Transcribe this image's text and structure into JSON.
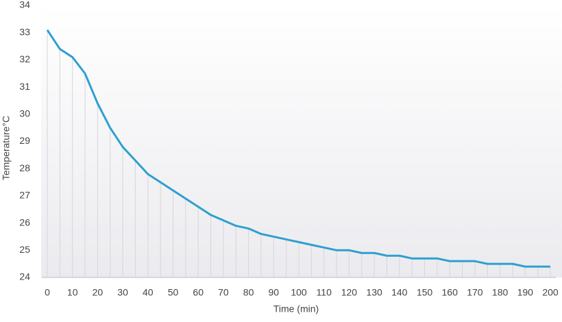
{
  "chart_data": {
    "type": "line",
    "xlabel": "Time (min)",
    "ylabel": "Temperature°C",
    "x": [
      0,
      5,
      10,
      15,
      20,
      25,
      30,
      35,
      40,
      45,
      50,
      55,
      60,
      65,
      70,
      75,
      80,
      85,
      90,
      95,
      100,
      105,
      110,
      115,
      120,
      125,
      130,
      135,
      140,
      145,
      150,
      155,
      160,
      165,
      170,
      175,
      180,
      185,
      190,
      195,
      200
    ],
    "values": [
      33.1,
      32.4,
      32.1,
      31.5,
      30.4,
      29.5,
      28.8,
      28.3,
      27.8,
      27.5,
      27.2,
      26.9,
      26.6,
      26.3,
      26.1,
      25.9,
      25.8,
      25.6,
      25.5,
      25.4,
      25.3,
      25.2,
      25.1,
      25.0,
      25.0,
      24.9,
      24.9,
      24.8,
      24.8,
      24.7,
      24.7,
      24.7,
      24.6,
      24.6,
      24.6,
      24.5,
      24.5,
      24.5,
      24.4,
      24.4,
      24.4
    ],
    "color": "#2e9fd0",
    "xlim": [
      0,
      200
    ],
    "xticks": [
      0,
      10,
      20,
      30,
      40,
      50,
      60,
      70,
      80,
      90,
      100,
      110,
      120,
      130,
      140,
      150,
      160,
      170,
      180,
      190,
      200
    ],
    "ylim": [
      24,
      34
    ],
    "yticks": [
      24,
      25,
      26,
      27,
      28,
      29,
      30,
      31,
      32,
      33,
      34
    ]
  }
}
